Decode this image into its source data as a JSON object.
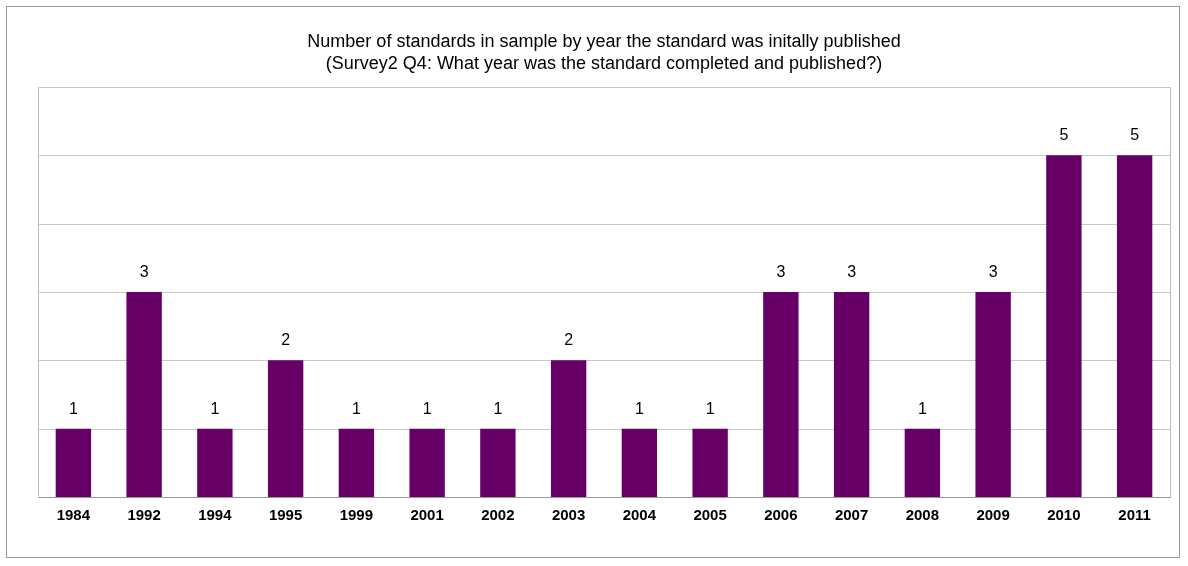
{
  "chart_data": {
    "type": "bar",
    "title": "Number of standards in sample by year the standard was initally published",
    "subtitle": "(Survey2 Q4: What year was the standard completed and published?)",
    "categories": [
      "1984",
      "1992",
      "1994",
      "1995",
      "1999",
      "2001",
      "2002",
      "2003",
      "2004",
      "2005",
      "2006",
      "2007",
      "2008",
      "2009",
      "2010",
      "2011"
    ],
    "values": [
      1,
      3,
      1,
      2,
      1,
      1,
      1,
      2,
      1,
      1,
      3,
      3,
      1,
      3,
      5,
      5
    ],
    "color": "#660066",
    "ylim": [
      0,
      6
    ],
    "yticks": [
      {
        "value": 0,
        "label": null
      },
      {
        "value": 1,
        "label": null
      },
      {
        "value": 2,
        "label": null
      },
      {
        "value": 3,
        "label": null
      },
      {
        "value": 4,
        "label": null
      },
      {
        "value": 5,
        "label": null
      },
      {
        "value": 6,
        "label": null
      }
    ],
    "tick_labels": "x",
    "grid": "y",
    "data_labels": true
  }
}
